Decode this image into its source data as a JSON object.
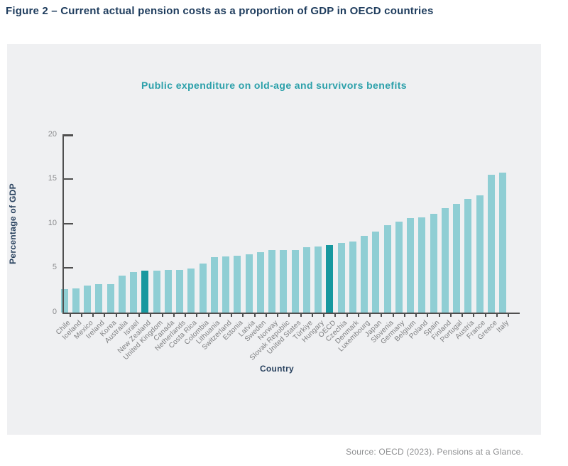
{
  "page": {
    "figure_title": "Figure 2 – Current actual pension costs as a proportion of GDP in OECD countries",
    "source_note": "Source: OECD (2023). Pensions at a Glance."
  },
  "chart_data": {
    "type": "bar",
    "title": "Public expenditure on old-age and survivors benefits",
    "xlabel": "Country",
    "ylabel": "Percentage of GDP",
    "ylim": [
      0,
      20
    ],
    "yticks": [
      0,
      5,
      10,
      15,
      20
    ],
    "grid": false,
    "legend": "none",
    "categories": [
      "Chile",
      "Iceland",
      "Mexico",
      "Ireland",
      "Korea",
      "Australia",
      "Israel",
      "New Zealand",
      "United Kingdom",
      "Canada",
      "Netherlands",
      "Costa Rica",
      "Colombia",
      "Lithuania",
      "Switzerland",
      "Estonia",
      "Latvia",
      "Sweden",
      "Norway",
      "Slovak Republic",
      "United States",
      "Türkiye",
      "Hungary",
      "OECD",
      "Czechia",
      "Denmark",
      "Luxembourg",
      "Japan",
      "Slovenia",
      "Germany",
      "Belgium",
      "Poland",
      "Spain",
      "Finland",
      "Portugal",
      "Austria",
      "France",
      "Greece",
      "Italy"
    ],
    "values": [
      2.6,
      2.7,
      3.0,
      3.2,
      3.2,
      4.1,
      4.5,
      4.7,
      4.7,
      4.8,
      4.8,
      4.9,
      5.5,
      6.2,
      6.3,
      6.4,
      6.5,
      6.8,
      7.0,
      7.0,
      7.0,
      7.3,
      7.4,
      7.6,
      7.8,
      8.0,
      8.6,
      9.1,
      9.8,
      10.2,
      10.6,
      10.7,
      11.1,
      11.7,
      12.2,
      12.8,
      13.2,
      15.5,
      15.7
    ],
    "highlighted": [
      "New Zealand",
      "OECD"
    ],
    "bar_color": "#8fced4",
    "highlight_color": "#17989f",
    "panel_background": "#eff0f2",
    "axis_color": "#4f4f4f",
    "title_color": "#2ba0aa",
    "figure_title_color": "#1e3c5d"
  }
}
